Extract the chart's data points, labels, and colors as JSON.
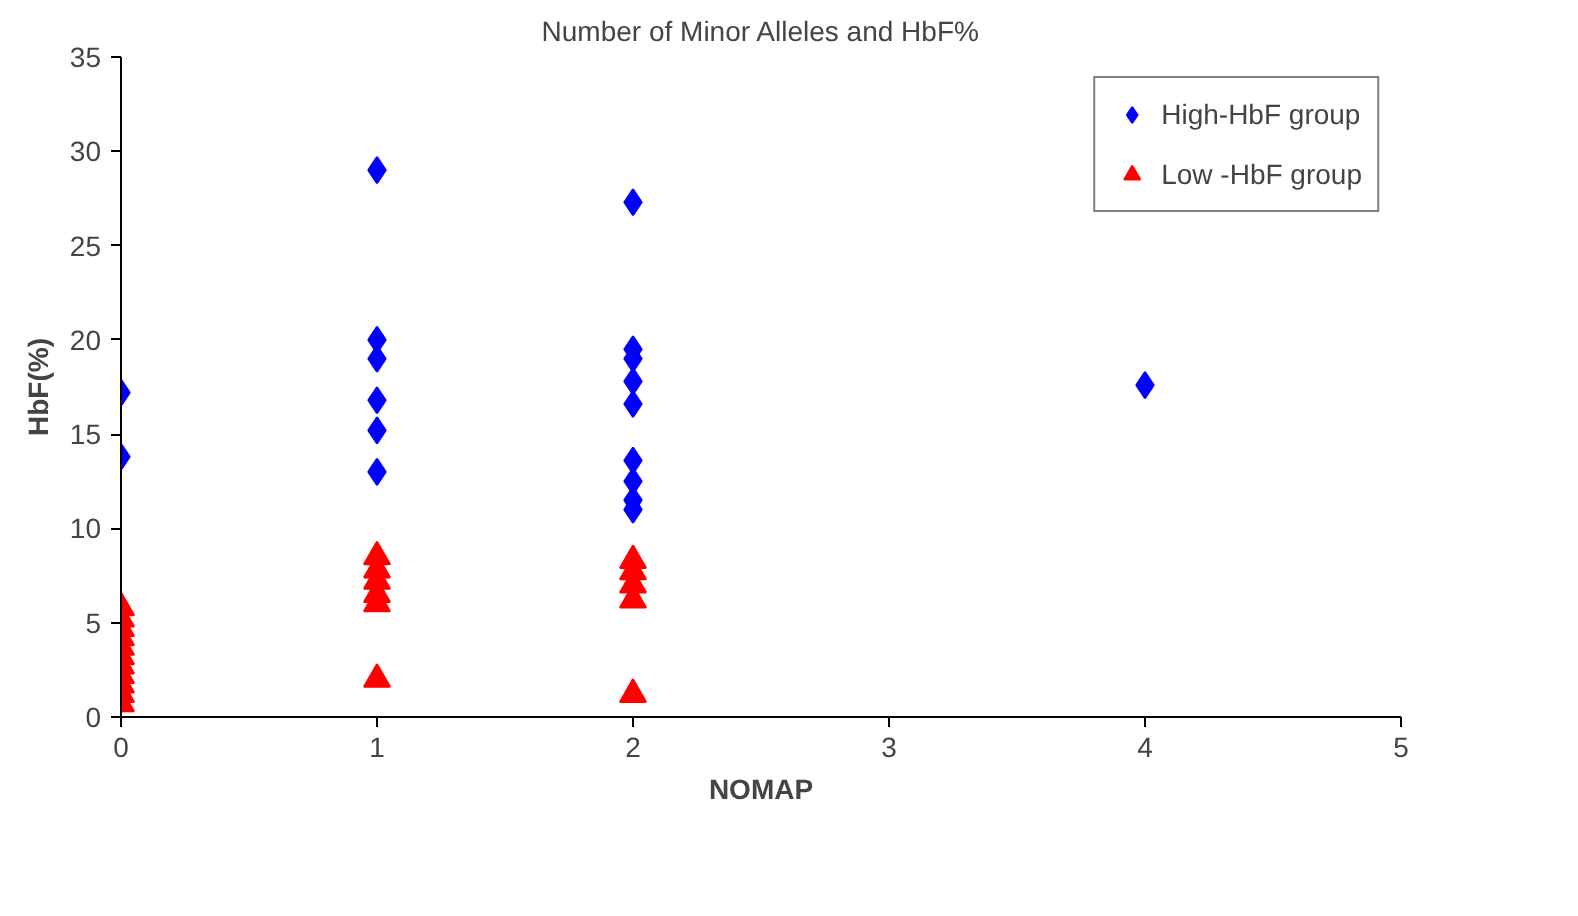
{
  "chart_data": {
    "type": "scatter",
    "title": "Number of Minor Alleles and HbF%",
    "xlabel": "NOMAP",
    "ylabel": "HbF(%)",
    "xlim": [
      0,
      5
    ],
    "xticks": [
      0,
      1,
      2,
      3,
      4,
      5
    ],
    "ylim": [
      0,
      35
    ],
    "yticks": [
      0,
      5,
      10,
      15,
      20,
      25,
      30,
      35
    ],
    "grid": false,
    "legend": "top right",
    "series": [
      {
        "name": "High-HbF group",
        "color": "#0000ff",
        "marker": "diamond",
        "x": [
          0,
          0,
          1,
          1,
          1,
          1,
          1,
          1,
          2,
          2,
          2,
          2,
          2,
          2,
          2,
          2,
          2,
          4
        ],
        "values": [
          17.2,
          13.8,
          29,
          20,
          19,
          16.8,
          15.2,
          13,
          27.3,
          19.5,
          19,
          17.8,
          16.6,
          13.6,
          12.5,
          11.5,
          11,
          17.6
        ]
      },
      {
        "name": "Low -HbF group",
        "color": "#ff0000",
        "marker": "triangle",
        "x": [
          0,
          0,
          0,
          0,
          0,
          0,
          0,
          0,
          0,
          0,
          0,
          1,
          1,
          1,
          1,
          1,
          1,
          2,
          2,
          2,
          2,
          2
        ],
        "values": [
          0.7,
          1.2,
          1.7,
          2.2,
          2.7,
          3.2,
          3.7,
          4.2,
          4.7,
          5.2,
          5.8,
          8.5,
          7.8,
          7.2,
          6.5,
          6,
          2,
          8.3,
          7.7,
          7,
          6.2,
          1.2
        ]
      }
    ]
  }
}
